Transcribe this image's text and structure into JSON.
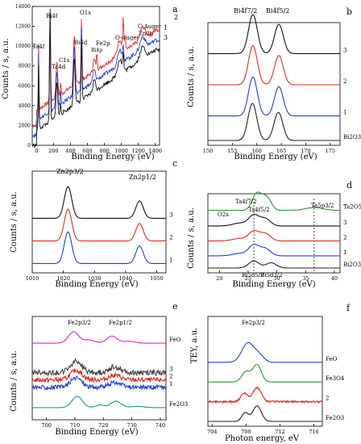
{
  "figure": {
    "panel_labels": [
      "a",
      "b",
      "c",
      "d",
      "e",
      "f"
    ]
  },
  "chart_data": [
    {
      "panel": "a",
      "type": "line",
      "xlabel": "Binding Energy (eV)",
      "ylabel": "Counts / s, a.u.",
      "xlim": [
        -50,
        1450
      ],
      "ylim": [
        0,
        14000
      ],
      "xticks": [
        "0",
        "200",
        "400",
        "600",
        "800",
        "1000",
        "1200",
        "1400"
      ],
      "yticks": [
        "0",
        "2000",
        "4000",
        "6000",
        "8000",
        "10000",
        "12000",
        "14000"
      ],
      "annotations": [
        "Ta4f",
        "Bi4f",
        "Ta4d",
        "C1s",
        "Bi4d",
        "O1s",
        "Fe2p",
        "Bi4p",
        "O-Auger",
        "Zn2p",
        "C-Auger"
      ],
      "series_labels": [
        "2",
        "1",
        "3"
      ],
      "series": [
        {
          "label": "2",
          "color": "#e8281e",
          "offset": 2000,
          "peaks": [
            [
              25,
              6500,
              4
            ],
            [
              160,
              11500,
              5
            ],
            [
              240,
              3500,
              10
            ],
            [
              285,
              1200,
              5
            ],
            [
              445,
              5000,
              10
            ],
            [
              531,
              6500,
              5
            ],
            [
              680,
              1200,
              15
            ],
            [
              712,
              1600,
              6
            ],
            [
              980,
              1500,
              25
            ],
            [
              1022,
              3300,
              6
            ],
            [
              1045,
              1600,
              6
            ],
            [
              1250,
              1200,
              30
            ]
          ],
          "trend": [
            [
              0,
              1500
            ],
            [
              1400,
              9600
            ]
          ]
        },
        {
          "label": "1",
          "color": "#1f3fe0",
          "offset": 1000,
          "peaks": [
            [
              25,
              6500,
              4
            ],
            [
              160,
              11500,
              5
            ],
            [
              240,
              3500,
              10
            ],
            [
              285,
              1200,
              5
            ],
            [
              445,
              5000,
              10
            ],
            [
              531,
              6500,
              5
            ],
            [
              680,
              1200,
              15
            ],
            [
              980,
              1500,
              25
            ],
            [
              1022,
              1600,
              6
            ],
            [
              1250,
              1200,
              30
            ]
          ],
          "trend": [
            [
              0,
              1500
            ],
            [
              1400,
              9600
            ]
          ]
        },
        {
          "label": "3",
          "color": "#111111",
          "offset": 0,
          "peaks": [
            [
              25,
              6500,
              4
            ],
            [
              160,
              11500,
              5
            ],
            [
              240,
              3500,
              10
            ],
            [
              285,
              1200,
              5
            ],
            [
              445,
              5000,
              10
            ],
            [
              531,
              6500,
              5
            ],
            [
              680,
              1200,
              15
            ],
            [
              980,
              1500,
              25
            ],
            [
              1022,
              1600,
              6
            ],
            [
              1250,
              1200,
              30
            ]
          ],
          "trend": [
            [
              0,
              1500
            ],
            [
              1400,
              9600
            ]
          ]
        }
      ]
    },
    {
      "panel": "b",
      "type": "line",
      "xlabel": "Binding Energy (eV)",
      "ylabel": "Counts / s, a.u.",
      "xlim": [
        150,
        177
      ],
      "xticks": [
        "150",
        "155",
        "160",
        "165",
        "170",
        "175"
      ],
      "peak_labels": [
        "Bi4f7/2",
        "Bi4f5/2"
      ],
      "series": [
        {
          "label": "3",
          "color": "#111111",
          "offset": 0.78,
          "peaks": [
            [
              159.2,
              1.0,
              0.9
            ],
            [
              164.5,
              0.75,
              0.9
            ]
          ]
        },
        {
          "label": "2",
          "color": "#e8281e",
          "offset": 0.5,
          "peaks": [
            [
              159.2,
              1.0,
              0.9
            ],
            [
              164.5,
              0.75,
              0.9
            ]
          ]
        },
        {
          "label": "1",
          "color": "#1f3fe0",
          "offset": 0.22,
          "peaks": [
            [
              159.2,
              1.0,
              0.9
            ],
            [
              164.5,
              0.75,
              0.9
            ]
          ]
        },
        {
          "label": "Bi2O3",
          "color": "#222222",
          "offset": 0.0,
          "peaks": [
            [
              159.1,
              0.95,
              0.9
            ],
            [
              164.4,
              0.72,
              0.9
            ]
          ]
        }
      ]
    },
    {
      "panel": "c",
      "type": "line",
      "xlabel": "Binding Energy (eV)",
      "ylabel": "Counts / s, a.u.",
      "xlim": [
        1010,
        1053
      ],
      "xticks": [
        "1010",
        "1020",
        "1030",
        "1040",
        "1050"
      ],
      "peak_labels": [
        "Zn2p3/2",
        "Zn2p1/2"
      ],
      "series": [
        {
          "label": "3",
          "color": "#111111",
          "offset": 0.55,
          "peaks": [
            [
              1021.5,
              1.0,
              1.2
            ],
            [
              1044.5,
              0.55,
              1.2
            ]
          ]
        },
        {
          "label": "2",
          "color": "#e8281e",
          "offset": 0.3,
          "peaks": [
            [
              1021.5,
              1.0,
              1.2
            ],
            [
              1044.5,
              0.55,
              1.2
            ]
          ]
        },
        {
          "label": "1",
          "color": "#1f3fe0",
          "offset": 0.05,
          "peaks": [
            [
              1021.5,
              1.0,
              1.2
            ],
            [
              1044.5,
              0.55,
              1.2
            ]
          ]
        }
      ]
    },
    {
      "panel": "d",
      "type": "line",
      "xlabel": "Binding Energy (eV)",
      "ylabel": "Counts / s, a.u.",
      "xlim": [
        18,
        41
      ],
      "xticks": [
        "20",
        "25",
        "30",
        "35",
        "40"
      ],
      "peak_labels": [
        "Ta4f7/2",
        "Ta4f5/2",
        "O2s",
        "Ta5p3/2",
        "Bi5d5/2",
        "Bi5d3/2"
      ],
      "dashed_lines": [
        26.0,
        36.5
      ],
      "series": [
        {
          "label": "Ta2O5",
          "color": "#1f9a2e",
          "offset": 0.85,
          "peaks": [
            [
              26.5,
              0.7,
              0.8
            ],
            [
              28.2,
              0.55,
              0.8
            ],
            [
              36.5,
              0.12,
              1.5
            ]
          ]
        },
        {
          "label": "3",
          "color": "#111111",
          "offset": 0.62,
          "peaks": [
            [
              23.5,
              0.12,
              1.2
            ],
            [
              26.0,
              0.45,
              0.9
            ],
            [
              28.0,
              0.3,
              0.9
            ]
          ]
        },
        {
          "label": "2",
          "color": "#e8281e",
          "offset": 0.4,
          "peaks": [
            [
              23.5,
              0.1,
              1.2
            ],
            [
              26.0,
              0.4,
              0.9
            ],
            [
              28.0,
              0.3,
              0.9
            ]
          ]
        },
        {
          "label": "1",
          "color": "#1f3fe0",
          "offset": 0.18,
          "peaks": [
            [
              23.5,
              0.1,
              1.2
            ],
            [
              26.0,
              0.45,
              0.9
            ],
            [
              28.0,
              0.3,
              0.9
            ]
          ]
        },
        {
          "label": "Bi2O3",
          "color": "#222222",
          "offset": 0.0,
          "peaks": [
            [
              26.0,
              0.3,
              0.9
            ],
            [
              29.0,
              0.22,
              0.9
            ]
          ]
        }
      ]
    },
    {
      "panel": "e",
      "type": "line",
      "xlabel": "Binding Energy (eV)",
      "ylabel": "Counts / s, a.u.",
      "xlim": [
        695,
        742
      ],
      "xticks": [
        "700",
        "710",
        "720",
        "730",
        "740"
      ],
      "peak_labels": [
        "Fe2p3/2",
        "Fe2p1/2"
      ],
      "series": [
        {
          "label": "FeO",
          "color": "#e020d0",
          "offset": 0.78,
          "peaks": [
            [
              709.5,
              0.35,
              1.8
            ],
            [
              715,
              0.1,
              2
            ],
            [
              723,
              0.22,
              1.8
            ],
            [
              729,
              0.06,
              2
            ]
          ]
        },
        {
          "label": "3",
          "color": "#444444",
          "offset": 0.46,
          "noise": 0.06,
          "peaks": [
            [
              710.5,
              0.35,
              2
            ],
            [
              724,
              0.18,
              2
            ]
          ]
        },
        {
          "label": "2",
          "color": "#e8281e",
          "offset": 0.38,
          "noise": 0.05,
          "peaks": [
            [
              710.5,
              0.3,
              2
            ],
            [
              724,
              0.15,
              2
            ]
          ]
        },
        {
          "label": "1",
          "color": "#1f3fe0",
          "offset": 0.3,
          "noise": 0.05,
          "peaks": [
            [
              710.5,
              0.3,
              2
            ],
            [
              724,
              0.15,
              2
            ]
          ]
        },
        {
          "label": "Fe2O3",
          "color": "#159b8e",
          "offset": 0.08,
          "peaks": [
            [
              710.8,
              0.35,
              1.8
            ],
            [
              718.8,
              0.08,
              1.5
            ],
            [
              724.4,
              0.2,
              1.8
            ],
            [
              732,
              0.04,
              2
            ]
          ]
        }
      ]
    },
    {
      "panel": "f",
      "type": "line",
      "xlabel": "Photon energy, eV",
      "ylabel": "TEY, a.u.",
      "xlim": [
        703.5,
        717
      ],
      "xticks": [
        "704",
        "708",
        "712",
        "716"
      ],
      "peak_labels": [
        "Fe2p3/2"
      ],
      "series": [
        {
          "label": "FeO",
          "color": "#2a3fe0",
          "offset": 0.6,
          "peaks": [
            [
              708.2,
              0.55,
              0.7
            ],
            [
              709.5,
              0.2,
              0.6
            ]
          ]
        },
        {
          "label": "Fe3O4",
          "color": "#1f9a2e",
          "offset": 0.4,
          "peaks": [
            [
              708.0,
              0.3,
              0.5
            ],
            [
              709.3,
              0.5,
              0.5
            ]
          ]
        },
        {
          "label": "2",
          "color": "#e8281e",
          "offset": 0.2,
          "noise": 0.02,
          "peaks": [
            [
              707.8,
              0.25,
              0.4
            ],
            [
              709.3,
              0.4,
              0.5
            ]
          ]
        },
        {
          "label": "Fe2O3",
          "color": "#222222",
          "offset": 0.0,
          "peaks": [
            [
              707.9,
              0.25,
              0.4
            ],
            [
              709.3,
              0.45,
              0.5
            ]
          ]
        }
      ]
    }
  ]
}
